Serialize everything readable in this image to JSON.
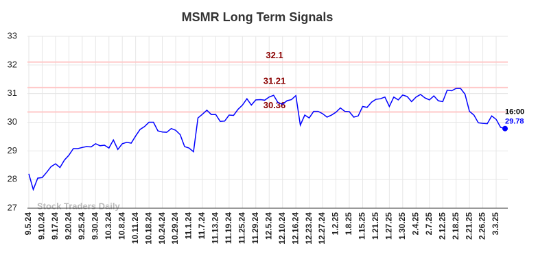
{
  "chart_data": {
    "type": "line",
    "title": "MSMR Long Term Signals",
    "categories": [
      "9.5.24",
      null,
      null,
      "9.10.24",
      null,
      null,
      "9.17.24",
      null,
      null,
      "9.20.24",
      null,
      null,
      "9.25.24",
      null,
      null,
      "9.30.24",
      null,
      null,
      "10.3.24",
      null,
      null,
      "10.8.24",
      null,
      null,
      "10.11.24",
      null,
      null,
      "10.18.24",
      null,
      null,
      "10.24.24",
      null,
      null,
      "10.29.24",
      null,
      null,
      "11.1.24",
      null,
      null,
      "11.7.24",
      null,
      null,
      "11.13.24",
      null,
      null,
      "11.19.24",
      null,
      null,
      "11.25.24",
      null,
      null,
      "11.29.24",
      null,
      null,
      "12.5.24",
      null,
      null,
      "12.10.24",
      null,
      null,
      "12.16.24",
      null,
      null,
      "12.23.24",
      null,
      null,
      "12.27.24",
      null,
      null,
      "1.2.25",
      null,
      null,
      "1.8.25",
      null,
      null,
      "1.15.25",
      null,
      null,
      "1.21.25",
      null,
      null,
      "1.27.25",
      null,
      null,
      "1.30.25",
      null,
      null,
      "2.4.25",
      null,
      null,
      "2.7.25",
      null,
      null,
      "2.12.25",
      null,
      null,
      "2.18.25",
      null,
      null,
      "2.21.25",
      null,
      null,
      "2.26.25",
      null,
      null,
      "3.3.25",
      null,
      null
    ],
    "series": [
      {
        "name": "MSMR",
        "color": "#0000ff",
        "values": [
          28.2,
          27.65,
          28.05,
          28.07,
          28.25,
          28.45,
          28.55,
          28.42,
          28.68,
          28.85,
          29.08,
          29.08,
          29.12,
          29.15,
          29.14,
          29.25,
          29.18,
          29.2,
          29.1,
          29.38,
          29.05,
          29.25,
          29.3,
          29.27,
          29.52,
          29.75,
          29.85,
          30.0,
          30.0,
          29.7,
          29.66,
          29.65,
          29.78,
          29.72,
          29.57,
          29.15,
          29.1,
          28.97,
          30.15,
          30.28,
          30.42,
          30.27,
          30.27,
          30.03,
          30.04,
          30.25,
          30.24,
          30.45,
          30.6,
          30.82,
          30.6,
          30.78,
          30.79,
          30.77,
          30.88,
          30.94,
          30.68,
          30.63,
          30.75,
          30.79,
          30.93,
          29.9,
          30.25,
          30.15,
          30.38,
          30.38,
          30.3,
          30.18,
          30.25,
          30.35,
          30.5,
          30.38,
          30.37,
          30.18,
          30.22,
          30.55,
          30.52,
          30.7,
          30.8,
          30.82,
          30.88,
          30.55,
          30.88,
          30.78,
          30.95,
          30.9,
          30.72,
          30.88,
          30.97,
          30.85,
          30.78,
          30.92,
          30.75,
          30.72,
          31.12,
          31.1,
          31.18,
          31.18,
          30.98,
          30.38,
          30.25,
          29.98,
          29.96,
          29.95,
          30.22,
          30.1,
          29.82,
          29.78
        ]
      }
    ],
    "hlines": [
      32.1,
      31.21,
      30.36
    ],
    "hline_color": "#ffc8c8",
    "hline_label_color": "#8b0000",
    "end_annotation": "16:00",
    "watermark": "Stock Traders Daily",
    "ylim": [
      27,
      33
    ],
    "yticks": [
      27,
      28,
      29,
      30,
      31,
      32,
      33
    ],
    "grid": true
  }
}
